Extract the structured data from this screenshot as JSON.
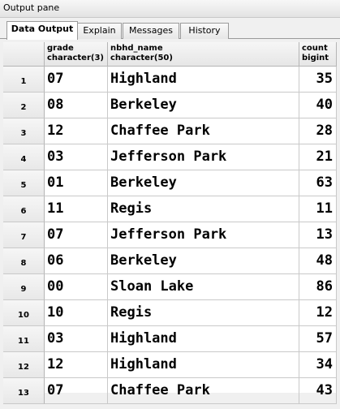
{
  "pane_title": "Output pane",
  "tabs": [
    {
      "label": "Data Output",
      "active": true
    },
    {
      "label": "Explain",
      "active": false
    },
    {
      "label": "Messages",
      "active": false
    },
    {
      "label": "History",
      "active": false
    }
  ],
  "columns": [
    {
      "name": "grade",
      "type": "character(3)"
    },
    {
      "name": "nbhd_name",
      "type": "character(50)"
    },
    {
      "name": "count",
      "type": "bigint"
    }
  ],
  "rows": [
    {
      "num": "1",
      "grade": "07",
      "nbhd_name": "Highland",
      "count": "35"
    },
    {
      "num": "2",
      "grade": "08",
      "nbhd_name": "Berkeley",
      "count": "40"
    },
    {
      "num": "3",
      "grade": "12",
      "nbhd_name": "Chaffee Park",
      "count": "28"
    },
    {
      "num": "4",
      "grade": "03",
      "nbhd_name": "Jefferson Park",
      "count": "21"
    },
    {
      "num": "5",
      "grade": "01",
      "nbhd_name": "Berkeley",
      "count": "63"
    },
    {
      "num": "6",
      "grade": "11",
      "nbhd_name": "Regis",
      "count": "11"
    },
    {
      "num": "7",
      "grade": "07",
      "nbhd_name": "Jefferson Park",
      "count": "13"
    },
    {
      "num": "8",
      "grade": "06",
      "nbhd_name": "Berkeley",
      "count": "48"
    },
    {
      "num": "9",
      "grade": "00",
      "nbhd_name": "Sloan Lake",
      "count": "86"
    },
    {
      "num": "10",
      "grade": "10",
      "nbhd_name": "Regis",
      "count": "12"
    },
    {
      "num": "11",
      "grade": "03",
      "nbhd_name": "Highland",
      "count": "57"
    },
    {
      "num": "12",
      "grade": "12",
      "nbhd_name": "Highland",
      "count": "34"
    },
    {
      "num": "13",
      "grade": "07",
      "nbhd_name": "Chaffee Park",
      "count": "43"
    }
  ]
}
